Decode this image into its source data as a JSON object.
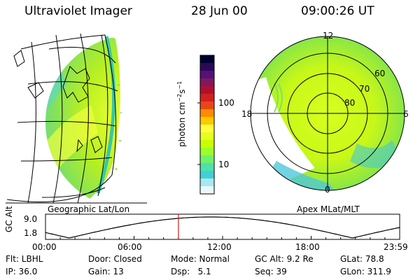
{
  "header": {
    "title": "Ultraviolet Imager",
    "date": "28 Jun 00",
    "time": "09:00:26 UT"
  },
  "left_panel": {
    "caption": "Geographic Lat/Lon"
  },
  "right_panel": {
    "caption": "Apex MLat/MLT",
    "mlt_labels": {
      "top": "12",
      "left": "18",
      "right": "6",
      "bottom": "0"
    },
    "lat_labels": [
      "60",
      "70",
      "80"
    ]
  },
  "colorbar": {
    "unit_label": "photon cm",
    "unit_exp1": "−2",
    "unit_mid": "s",
    "unit_exp2": "−1",
    "tick_100": "100",
    "tick_10": "10",
    "colors": [
      "#000033",
      "#2a0a55",
      "#55107a",
      "#801860",
      "#b01030",
      "#d02020",
      "#e84818",
      "#ff8c00",
      "#ffc800",
      "#ffff40",
      "#e6ff20",
      "#c8ff00",
      "#9aff2a",
      "#70f070",
      "#50e0a8",
      "#40d0d8",
      "#a8e8f0",
      "#e8f8fc"
    ]
  },
  "altitude_plot": {
    "ylabel": "GC Alt",
    "ymax_label": "9.0",
    "ymin_label": "1.8",
    "x_labels": [
      "00:00",
      "06:00",
      "12:00",
      "18:00",
      "23:59"
    ],
    "marker_time_hours": 9.007
  },
  "status": {
    "filter": "Flt: LBHL",
    "door": "Door: Closed",
    "mode": "Mode: Normal",
    "gc_alt": "GC Alt: 9.2 Re",
    "glat": "GLat: 78.8",
    "ip": "IP: 36.0",
    "gain": "Gain: 13",
    "dsp": "Dsp:   5.1",
    "seq": "Seq: 39",
    "glon": "GLon: 311.9"
  }
}
